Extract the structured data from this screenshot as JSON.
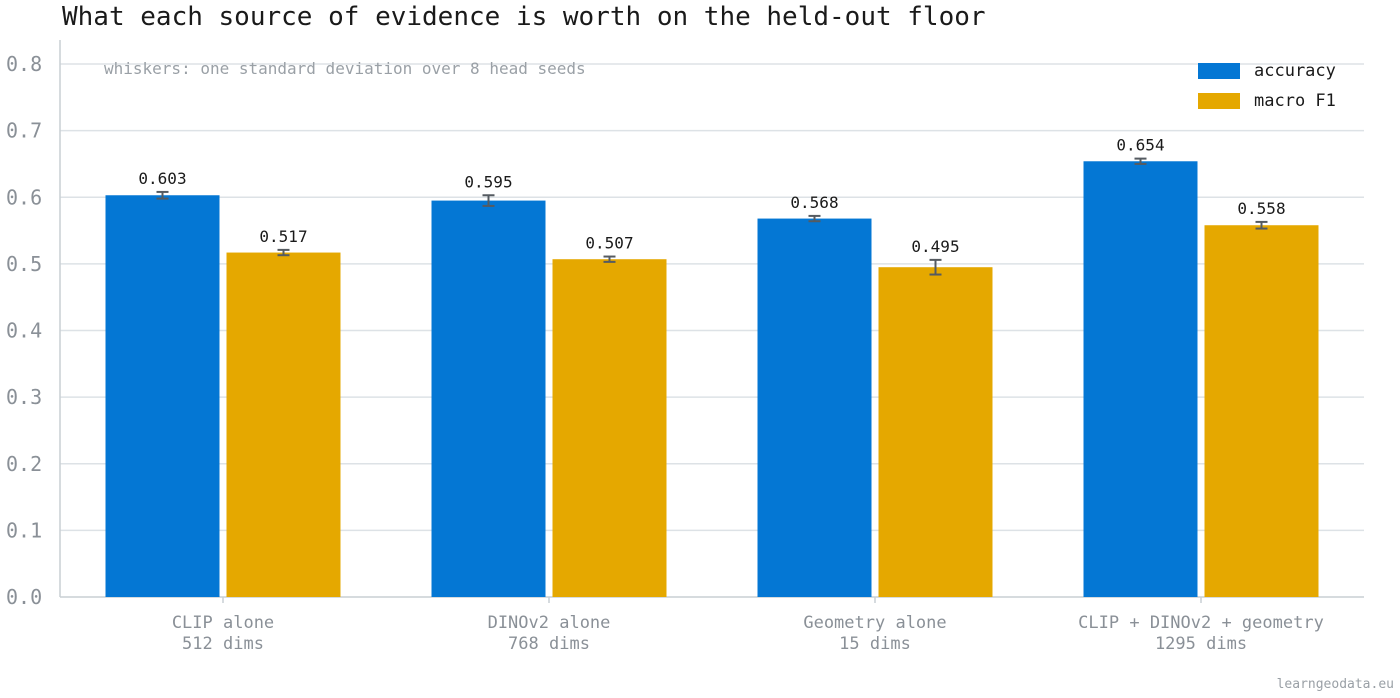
{
  "chart_data": {
    "type": "bar",
    "title": "What each source of evidence is worth on the held-out floor",
    "annotation": "whiskers: one standard deviation over 8 head seeds",
    "categories": [
      [
        "CLIP alone",
        "512 dims"
      ],
      [
        "DINOv2 alone",
        "768 dims"
      ],
      [
        "Geometry alone",
        "15 dims"
      ],
      [
        "CLIP + DINOv2 + geometry",
        "1295 dims"
      ]
    ],
    "series": [
      {
        "name": "accuracy",
        "color": "#0477d4",
        "values": [
          0.603,
          0.595,
          0.568,
          0.654
        ],
        "labels": [
          "0.603",
          "0.595",
          "0.568",
          "0.654"
        ],
        "err": [
          0.005,
          0.008,
          0.004,
          0.004
        ]
      },
      {
        "name": "macro F1",
        "color": "#e5a800",
        "values": [
          0.517,
          0.507,
          0.495,
          0.558
        ],
        "labels": [
          "0.517",
          "0.507",
          "0.495",
          "0.558"
        ],
        "err": [
          0.004,
          0.004,
          0.011,
          0.005
        ]
      }
    ],
    "ylim": [
      0,
      0.84
    ],
    "yticks": [
      "0.0",
      "0.1",
      "0.2",
      "0.3",
      "0.4",
      "0.5",
      "0.6",
      "0.7",
      "0.8"
    ],
    "legend_position": "top-right",
    "grid": "horizontal"
  },
  "credit": "learngeodata.eu"
}
